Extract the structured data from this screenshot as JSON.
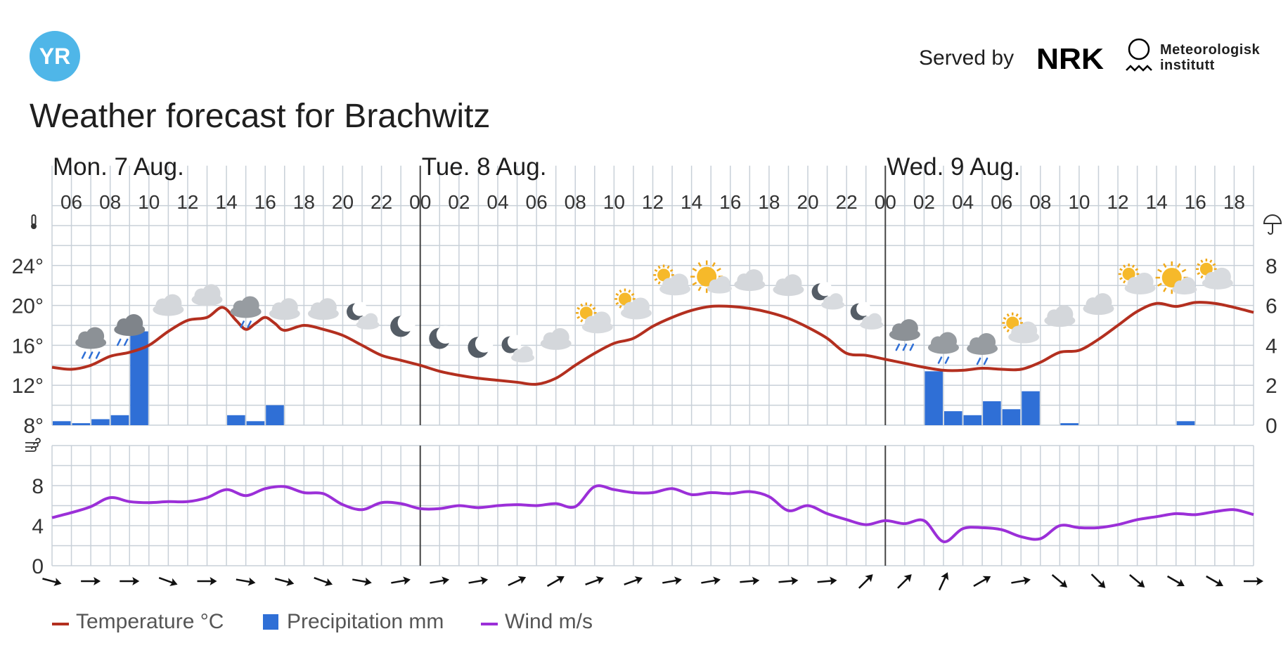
{
  "header": {
    "logo_text": "YR",
    "served_by": "Served by",
    "nrk_logo_text": "NRK",
    "met_logo_text": [
      "Meteorologisk",
      "institutt"
    ]
  },
  "title": "Weather forecast for Brachwitz",
  "colors": {
    "temperature": "#b32f1f",
    "precipitation": "#2f6fd6",
    "wind": "#9b2fd8",
    "grid": "#c8d0d8",
    "yr_blue": "#4fb6e8"
  },
  "icons": {
    "temperature_axis": "thermometer-icon",
    "precipitation_axis": "umbrella-icon",
    "wind_axis": "wind-icon"
  },
  "chart_data": {
    "type": "line",
    "x_unit": "hour",
    "days": [
      {
        "label": "Mon. 7 Aug.",
        "start_hour": 5
      },
      {
        "label": "Tue. 8 Aug.",
        "start_hour": 24
      },
      {
        "label": "Wed. 9 Aug.",
        "start_hour": 48
      }
    ],
    "x_range": [
      5,
      67
    ],
    "hour_ticks": [
      {
        "h": 6,
        "label": "06"
      },
      {
        "h": 8,
        "label": "08"
      },
      {
        "h": 10,
        "label": "10"
      },
      {
        "h": 12,
        "label": "12"
      },
      {
        "h": 14,
        "label": "14"
      },
      {
        "h": 16,
        "label": "16"
      },
      {
        "h": 18,
        "label": "18"
      },
      {
        "h": 20,
        "label": "20"
      },
      {
        "h": 22,
        "label": "22"
      },
      {
        "h": 24,
        "label": "00"
      },
      {
        "h": 26,
        "label": "02"
      },
      {
        "h": 28,
        "label": "04"
      },
      {
        "h": 30,
        "label": "06"
      },
      {
        "h": 32,
        "label": "08"
      },
      {
        "h": 34,
        "label": "10"
      },
      {
        "h": 36,
        "label": "12"
      },
      {
        "h": 38,
        "label": "14"
      },
      {
        "h": 40,
        "label": "16"
      },
      {
        "h": 42,
        "label": "18"
      },
      {
        "h": 44,
        "label": "20"
      },
      {
        "h": 46,
        "label": "22"
      },
      {
        "h": 48,
        "label": "00"
      },
      {
        "h": 50,
        "label": "02"
      },
      {
        "h": 52,
        "label": "04"
      },
      {
        "h": 54,
        "label": "06"
      },
      {
        "h": 56,
        "label": "08"
      },
      {
        "h": 58,
        "label": "10"
      },
      {
        "h": 60,
        "label": "12"
      },
      {
        "h": 62,
        "label": "14"
      },
      {
        "h": 64,
        "label": "16"
      },
      {
        "h": 66,
        "label": "18"
      }
    ],
    "temperature": {
      "unit": "°C",
      "ylim": [
        8,
        28
      ],
      "ticks": [
        {
          "v": 8,
          "label": "8°"
        },
        {
          "v": 12,
          "label": "12°"
        },
        {
          "v": 16,
          "label": "16°"
        },
        {
          "v": 20,
          "label": "20°"
        },
        {
          "v": 24,
          "label": "24°"
        }
      ],
      "points": [
        [
          5,
          13.8
        ],
        [
          6,
          13.6
        ],
        [
          7,
          14.0
        ],
        [
          8,
          14.9
        ],
        [
          9,
          15.3
        ],
        [
          10,
          16.0
        ],
        [
          11,
          17.4
        ],
        [
          12,
          18.5
        ],
        [
          13,
          18.8
        ],
        [
          13.8,
          19.8
        ],
        [
          14.5,
          18.5
        ],
        [
          15,
          17.6
        ],
        [
          15.5,
          18.2
        ],
        [
          16,
          18.8
        ],
        [
          16.5,
          18.2
        ],
        [
          17,
          17.5
        ],
        [
          18,
          18.0
        ],
        [
          19,
          17.6
        ],
        [
          20,
          17.0
        ],
        [
          21,
          16.0
        ],
        [
          22,
          15.0
        ],
        [
          23,
          14.5
        ],
        [
          24,
          14.0
        ],
        [
          25,
          13.4
        ],
        [
          26,
          13.0
        ],
        [
          27,
          12.7
        ],
        [
          28,
          12.5
        ],
        [
          29,
          12.3
        ],
        [
          30,
          12.1
        ],
        [
          31,
          12.7
        ],
        [
          32,
          14.0
        ],
        [
          33,
          15.2
        ],
        [
          34,
          16.2
        ],
        [
          35,
          16.7
        ],
        [
          36,
          17.9
        ],
        [
          37,
          18.8
        ],
        [
          38,
          19.5
        ],
        [
          39,
          19.9
        ],
        [
          40,
          19.9
        ],
        [
          41,
          19.7
        ],
        [
          42,
          19.3
        ],
        [
          43,
          18.7
        ],
        [
          44,
          17.8
        ],
        [
          45,
          16.7
        ],
        [
          46,
          15.2
        ],
        [
          47,
          15.0
        ],
        [
          48,
          14.6
        ],
        [
          49,
          14.2
        ],
        [
          50,
          13.8
        ],
        [
          51,
          13.5
        ],
        [
          52,
          13.5
        ],
        [
          53,
          13.7
        ],
        [
          54,
          13.6
        ],
        [
          55,
          13.6
        ],
        [
          56,
          14.3
        ],
        [
          57,
          15.3
        ],
        [
          58,
          15.5
        ],
        [
          59,
          16.6
        ],
        [
          60,
          18.0
        ],
        [
          61,
          19.4
        ],
        [
          62,
          20.2
        ],
        [
          63,
          19.9
        ],
        [
          64,
          20.3
        ],
        [
          65,
          20.2
        ],
        [
          66,
          19.8
        ],
        [
          67,
          19.3
        ]
      ]
    },
    "precipitation": {
      "unit": "mm",
      "ylim": [
        0,
        10
      ],
      "ticks": [
        {
          "v": 0,
          "label": "0"
        },
        {
          "v": 2,
          "label": "2"
        },
        {
          "v": 4,
          "label": "4"
        },
        {
          "v": 6,
          "label": "6"
        },
        {
          "v": 8,
          "label": "8"
        }
      ],
      "bars": [
        {
          "h": 5,
          "v": 0.2
        },
        {
          "h": 6,
          "v": 0.1
        },
        {
          "h": 7,
          "v": 0.3
        },
        {
          "h": 8,
          "v": 0.5
        },
        {
          "h": 9,
          "v": 4.7
        },
        {
          "h": 14,
          "v": 0.5
        },
        {
          "h": 15,
          "v": 0.2
        },
        {
          "h": 16,
          "v": 1.0
        },
        {
          "h": 50,
          "v": 2.7
        },
        {
          "h": 51,
          "v": 0.7
        },
        {
          "h": 52,
          "v": 0.5
        },
        {
          "h": 53,
          "v": 1.2
        },
        {
          "h": 54,
          "v": 0.8
        },
        {
          "h": 55,
          "v": 1.7
        },
        {
          "h": 57,
          "v": 0.1
        },
        {
          "h": 63,
          "v": 0.2
        }
      ]
    },
    "wind": {
      "unit": "m/s",
      "ylim": [
        0,
        12
      ],
      "ticks": [
        {
          "v": 0,
          "label": "0"
        },
        {
          "v": 4,
          "label": "4"
        },
        {
          "v": 8,
          "label": "8"
        }
      ],
      "points": [
        [
          5,
          4.8
        ],
        [
          6,
          5.3
        ],
        [
          7,
          5.9
        ],
        [
          8,
          6.8
        ],
        [
          9,
          6.4
        ],
        [
          10,
          6.3
        ],
        [
          11,
          6.4
        ],
        [
          12,
          6.4
        ],
        [
          13,
          6.8
        ],
        [
          14,
          7.6
        ],
        [
          15,
          7.0
        ],
        [
          16,
          7.7
        ],
        [
          17,
          7.9
        ],
        [
          18,
          7.3
        ],
        [
          19,
          7.2
        ],
        [
          20,
          6.1
        ],
        [
          21,
          5.6
        ],
        [
          22,
          6.3
        ],
        [
          23,
          6.2
        ],
        [
          24,
          5.7
        ],
        [
          25,
          5.7
        ],
        [
          26,
          6.0
        ],
        [
          27,
          5.8
        ],
        [
          28,
          6.0
        ],
        [
          29,
          6.1
        ],
        [
          30,
          6.0
        ],
        [
          31,
          6.2
        ],
        [
          32,
          5.9
        ],
        [
          33,
          7.9
        ],
        [
          34,
          7.6
        ],
        [
          35,
          7.3
        ],
        [
          36,
          7.3
        ],
        [
          37,
          7.7
        ],
        [
          38,
          7.1
        ],
        [
          39,
          7.3
        ],
        [
          40,
          7.2
        ],
        [
          41,
          7.4
        ],
        [
          42,
          6.9
        ],
        [
          43,
          5.5
        ],
        [
          44,
          6.0
        ],
        [
          45,
          5.2
        ],
        [
          46,
          4.6
        ],
        [
          47,
          4.1
        ],
        [
          48,
          4.5
        ],
        [
          49,
          4.2
        ],
        [
          50,
          4.5
        ],
        [
          51,
          2.4
        ],
        [
          52,
          3.7
        ],
        [
          53,
          3.8
        ],
        [
          54,
          3.6
        ],
        [
          55,
          2.9
        ],
        [
          56,
          2.7
        ],
        [
          57,
          4.0
        ],
        [
          58,
          3.8
        ],
        [
          59,
          3.8
        ],
        [
          60,
          4.1
        ],
        [
          61,
          4.6
        ],
        [
          62,
          4.9
        ],
        [
          63,
          5.2
        ],
        [
          64,
          5.1
        ],
        [
          65,
          5.4
        ],
        [
          66,
          5.6
        ],
        [
          67,
          5.1
        ]
      ]
    },
    "wind_direction_arrows": [
      {
        "h": 5,
        "deg": 105
      },
      {
        "h": 7,
        "deg": 90
      },
      {
        "h": 9,
        "deg": 90
      },
      {
        "h": 11,
        "deg": 110
      },
      {
        "h": 13,
        "deg": 90
      },
      {
        "h": 15,
        "deg": 100
      },
      {
        "h": 17,
        "deg": 105
      },
      {
        "h": 19,
        "deg": 110
      },
      {
        "h": 21,
        "deg": 100
      },
      {
        "h": 23,
        "deg": 80
      },
      {
        "h": 25,
        "deg": 80
      },
      {
        "h": 27,
        "deg": 80
      },
      {
        "h": 29,
        "deg": 65
      },
      {
        "h": 31,
        "deg": 60
      },
      {
        "h": 33,
        "deg": 70
      },
      {
        "h": 35,
        "deg": 70
      },
      {
        "h": 37,
        "deg": 80
      },
      {
        "h": 39,
        "deg": 80
      },
      {
        "h": 41,
        "deg": 85
      },
      {
        "h": 43,
        "deg": 85
      },
      {
        "h": 45,
        "deg": 85
      },
      {
        "h": 47,
        "deg": 45
      },
      {
        "h": 49,
        "deg": 45
      },
      {
        "h": 51,
        "deg": 25
      },
      {
        "h": 53,
        "deg": 60
      },
      {
        "h": 55,
        "deg": 80
      },
      {
        "h": 57,
        "deg": 130
      },
      {
        "h": 59,
        "deg": 135
      },
      {
        "h": 61,
        "deg": 130
      },
      {
        "h": 63,
        "deg": 120
      },
      {
        "h": 65,
        "deg": 120
      },
      {
        "h": 67,
        "deg": 90
      }
    ],
    "weather_symbols": [
      {
        "h": 7,
        "t": 16.7,
        "icon": "rain-showers-icon"
      },
      {
        "h": 9,
        "t": 18.0,
        "icon": "heavy-rain-icon"
      },
      {
        "h": 11,
        "t": 20.0,
        "icon": "cloudy-icon"
      },
      {
        "h": 13,
        "t": 21.0,
        "icon": "cloudy-icon"
      },
      {
        "h": 15,
        "t": 19.8,
        "icon": "light-rain-icon"
      },
      {
        "h": 17,
        "t": 19.6,
        "icon": "cloudy-icon"
      },
      {
        "h": 19,
        "t": 19.6,
        "icon": "cloudy-icon"
      },
      {
        "h": 21,
        "t": 18.8,
        "icon": "partly-cloudy-night-icon"
      },
      {
        "h": 23,
        "t": 17.9,
        "icon": "clear-night-icon"
      },
      {
        "h": 25,
        "t": 16.7,
        "icon": "clear-night-icon"
      },
      {
        "h": 27,
        "t": 15.8,
        "icon": "clear-night-icon"
      },
      {
        "h": 29,
        "t": 15.5,
        "icon": "partly-cloudy-night-icon"
      },
      {
        "h": 31,
        "t": 16.6,
        "icon": "cloudy-icon"
      },
      {
        "h": 33,
        "t": 18.4,
        "icon": "partly-cloudy-day-icon"
      },
      {
        "h": 35,
        "t": 19.8,
        "icon": "partly-cloudy-day-icon"
      },
      {
        "h": 37,
        "t": 22.2,
        "icon": "partly-cloudy-day-icon"
      },
      {
        "h": 39,
        "t": 22.6,
        "icon": "sunny-cloud-icon"
      },
      {
        "h": 41,
        "t": 22.5,
        "icon": "cloudy-icon"
      },
      {
        "h": 43,
        "t": 22.0,
        "icon": "cloudy-icon"
      },
      {
        "h": 45,
        "t": 20.8,
        "icon": "partly-cloudy-night-icon"
      },
      {
        "h": 47,
        "t": 18.8,
        "icon": "partly-cloudy-night-icon"
      },
      {
        "h": 49,
        "t": 17.5,
        "icon": "rain-showers-icon"
      },
      {
        "h": 51,
        "t": 16.2,
        "icon": "light-rain-icon"
      },
      {
        "h": 53,
        "t": 16.1,
        "icon": "light-rain-icon"
      },
      {
        "h": 55,
        "t": 17.4,
        "icon": "partly-cloudy-day-icon"
      },
      {
        "h": 57,
        "t": 18.9,
        "icon": "cloudy-icon"
      },
      {
        "h": 59,
        "t": 20.1,
        "icon": "cloudy-icon"
      },
      {
        "h": 61,
        "t": 22.3,
        "icon": "partly-cloudy-day-icon"
      },
      {
        "h": 63,
        "t": 22.5,
        "icon": "sunny-cloud-icon"
      },
      {
        "h": 65,
        "t": 22.8,
        "icon": "partly-cloudy-day-icon"
      }
    ],
    "legend": [
      {
        "label": "Temperature °C",
        "kind": "line",
        "color": "#b32f1f"
      },
      {
        "label": "Precipitation mm",
        "kind": "box",
        "color": "#2f6fd6"
      },
      {
        "label": "Wind m/s",
        "kind": "line",
        "color": "#9b2fd8"
      }
    ],
    "grid": true
  }
}
